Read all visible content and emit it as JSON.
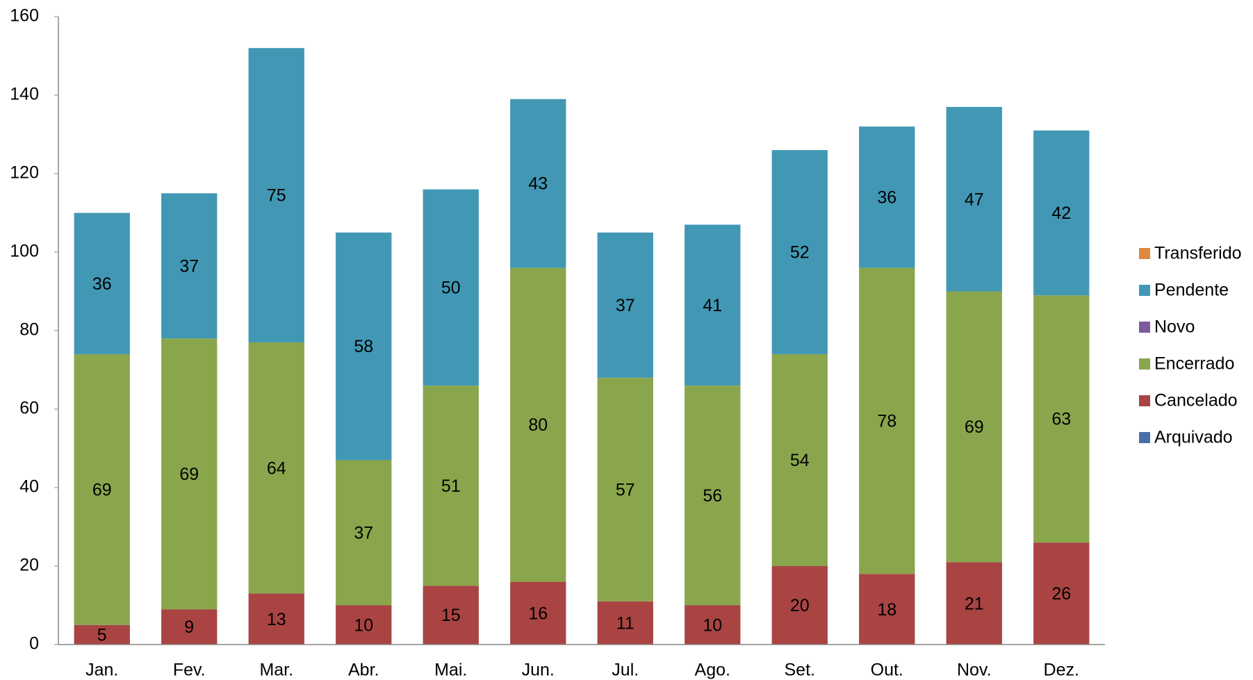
{
  "chart_data": {
    "type": "stacked_bar",
    "categories": [
      "Jan.",
      "Fev.",
      "Mar.",
      "Abr.",
      "Mai.",
      "Jun.",
      "Jul.",
      "Ago.",
      "Set.",
      "Out.",
      "Nov.",
      "Dez."
    ],
    "series": [
      {
        "name": "Arquivado",
        "color": "#4a6fa8",
        "values": [
          0,
          0,
          0,
          0,
          0,
          0,
          0,
          0,
          0,
          0,
          0,
          0
        ]
      },
      {
        "name": "Cancelado",
        "color": "#a94443",
        "values": [
          5,
          9,
          13,
          10,
          15,
          16,
          11,
          10,
          20,
          18,
          21,
          26
        ]
      },
      {
        "name": "Encerrado",
        "color": "#8aa64d",
        "values": [
          69,
          69,
          64,
          37,
          51,
          80,
          57,
          56,
          54,
          78,
          69,
          63
        ]
      },
      {
        "name": "Novo",
        "color": "#7d5a9e",
        "values": [
          0,
          0,
          0,
          0,
          0,
          0,
          0,
          0,
          0,
          0,
          0,
          0
        ]
      },
      {
        "name": "Pendente",
        "color": "#4298b4",
        "values": [
          36,
          37,
          75,
          58,
          50,
          43,
          37,
          41,
          52,
          36,
          47,
          42
        ]
      },
      {
        "name": "Transferido",
        "color": "#e0883e",
        "values": [
          0,
          0,
          0,
          0,
          0,
          0,
          0,
          0,
          0,
          0,
          0,
          0
        ]
      }
    ],
    "ylim": [
      0,
      160
    ],
    "yticks": [
      0,
      20,
      40,
      60,
      80,
      100,
      120,
      140,
      160
    ],
    "grid": false,
    "legend": "right"
  }
}
